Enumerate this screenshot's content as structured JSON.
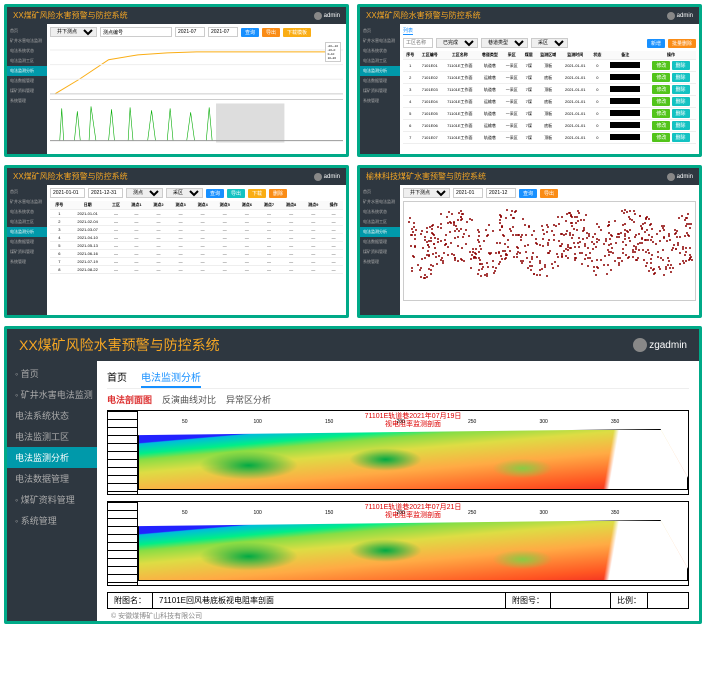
{
  "app_title": "XX煤矿风险水害预警与防控系统",
  "app_title_alt": "榆林科技煤矿水害预警与防控系统",
  "user_label": "admin",
  "user_label_big": "zgadmin",
  "sidebar_small": [
    "首页",
    "矿井水害电法监测",
    "电法系统状态",
    "电法监测工区",
    "电法监测分析",
    "电法数据管理",
    "煤矿资料管理",
    "系统管理"
  ],
  "sidebar_big": [
    {
      "label": "首页",
      "icon": "home"
    },
    {
      "label": "矿井水害电法监测",
      "icon": "clock"
    },
    {
      "label": "电法系统状态",
      "icon": ""
    },
    {
      "label": "电法监测工区",
      "icon": ""
    },
    {
      "label": "电法监测分析",
      "icon": ""
    },
    {
      "label": "电法数据管理",
      "icon": ""
    },
    {
      "label": "煤矿资料管理",
      "icon": "box"
    },
    {
      "label": "系统管理",
      "icon": "gear"
    }
  ],
  "sidebar_active_big": 4,
  "p1": {
    "filters": {
      "f1": "井下测点",
      "f2": "测点编号",
      "f3": "2021-07",
      "f4": "2021-07"
    },
    "buttons": [
      "查询",
      "导出",
      "下载模板"
    ],
    "legend": [
      "-20~-10",
      "-10~0",
      "0~10",
      "10~20"
    ]
  },
  "p2": {
    "tabs_label": "列表",
    "filters": {
      "f1": "工区名称",
      "f2": "已完成",
      "f3": "巷道类型",
      "f4": "采区"
    },
    "buttons": [
      "新增",
      "批量删除"
    ],
    "cols": [
      "序号",
      "工区编号",
      "工区名称",
      "巷道类型",
      "采区",
      "煤层",
      "监测区域",
      "监测时间",
      "状态",
      "备注",
      "操作"
    ],
    "rows": [
      [
        "1",
        "7101E01",
        "71101E工作面",
        "轨道巷",
        "一采区",
        "7煤",
        "顶板",
        "2021-01-01",
        "0"
      ],
      [
        "2",
        "7101E02",
        "71101E工作面",
        "运输巷",
        "一采区",
        "7煤",
        "底板",
        "2021-01-01",
        "0"
      ],
      [
        "3",
        "7101E03",
        "71101E工作面",
        "轨道巷",
        "一采区",
        "7煤",
        "顶板",
        "2021-01-01",
        "0"
      ],
      [
        "4",
        "7101E04",
        "71101E工作面",
        "运输巷",
        "一采区",
        "7煤",
        "底板",
        "2021-01-01",
        "0"
      ],
      [
        "5",
        "7101E05",
        "71101E工作面",
        "轨道巷",
        "一采区",
        "7煤",
        "顶板",
        "2021-01-01",
        "0"
      ],
      [
        "6",
        "7101E06",
        "71101E工作面",
        "运输巷",
        "一采区",
        "7煤",
        "底板",
        "2021-01-01",
        "0"
      ],
      [
        "7",
        "7101E07",
        "71101E工作面",
        "轨道巷",
        "一采区",
        "7煤",
        "顶板",
        "2021-01-01",
        "0"
      ]
    ],
    "row_btns": [
      "修改",
      "删除"
    ]
  },
  "p3": {
    "filters": {
      "f1": "2021-01-01",
      "f2": "2021-12-31",
      "f3": "测点",
      "f4": "采区"
    },
    "buttons": [
      "查询",
      "导出",
      "下载",
      "删除"
    ],
    "cols": [
      "序号",
      "日期",
      "工区",
      "测点1",
      "测点2",
      "测点3",
      "测点4",
      "测点5",
      "测点6",
      "测点7",
      "测点8",
      "测点9",
      "操作"
    ],
    "rows": 8
  },
  "p4": {
    "filters": {
      "f1": "井下测点",
      "f2": "2021-01",
      "f3": "2021-12"
    },
    "buttons": [
      "查询",
      "导出"
    ],
    "scatter_color": "#8b0000",
    "scatter_n": 600
  },
  "big": {
    "tabs": [
      "首页",
      "电法监测分析"
    ],
    "subtabs": [
      "电法剖面图",
      "反演曲线对比",
      "异常区分析"
    ],
    "chart1_title_l1": "71101E轨道巷2021年07月19日",
    "chart1_title_l2": "视电阻率监测剖面",
    "chart2_title_l1": "71101E轨道巷2021年07月21日",
    "chart2_title_l2": "视电阻率监测剖面",
    "ticks": [
      50,
      100,
      150,
      200,
      250,
      300,
      350
    ],
    "footer": {
      "l1": "附图名：",
      "l2": "71101E回风巷底板视电阻率剖面",
      "l3": "附图号：",
      "l4": "",
      "l5": "比例：",
      "l6": ""
    },
    "copyright": "© 安徽煤博矿山科技有限公司"
  },
  "colors": {
    "border": "#00aa88",
    "header_bg": "#2e3740",
    "header_fg": "#f5a623",
    "blue": "#1890ff",
    "orange": "#fa8c16",
    "yellow": "#faad14",
    "green": "#52c41a",
    "cyan": "#13c2c2",
    "heatmap_stops": [
      "#2222ff",
      "#00bbdd",
      "#00ee88",
      "#88dd44",
      "#dddd44",
      "#ffaa44",
      "#ff5522",
      "#ee2222"
    ]
  }
}
